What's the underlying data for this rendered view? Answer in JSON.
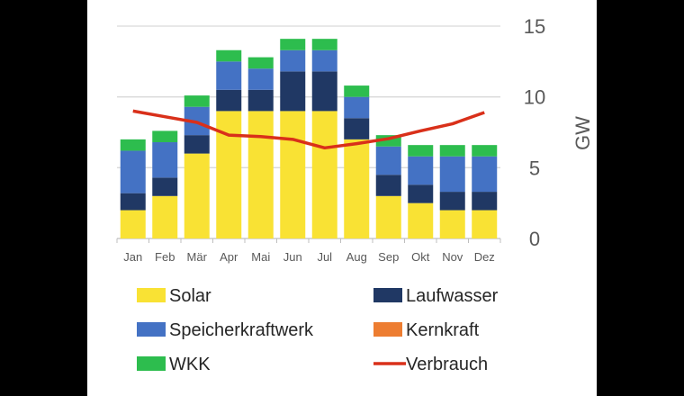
{
  "chart_data": {
    "type": "bar",
    "stacked": true,
    "categories": [
      "Jan",
      "Feb",
      "Mär",
      "Apr",
      "Mai",
      "Jun",
      "Jul",
      "Aug",
      "Sep",
      "Okt",
      "Nov",
      "Dez"
    ],
    "series": [
      {
        "name": "Solar",
        "color": "#F9E234",
        "values": [
          2,
          3,
          6,
          9,
          9,
          9,
          9,
          7,
          3,
          2.5,
          2,
          2
        ]
      },
      {
        "name": "Laufwasser",
        "color": "#203864",
        "values": [
          1.2,
          1.3,
          1.3,
          1.5,
          1.5,
          2.8,
          2.8,
          1.5,
          1.5,
          1.3,
          1.3,
          1.3
        ]
      },
      {
        "name": "Speicherkraftwerk",
        "color": "#4472C4",
        "values": [
          3,
          2.5,
          2,
          2,
          1.5,
          1.5,
          1.5,
          1.5,
          2,
          2,
          2.5,
          2.5
        ]
      },
      {
        "name": "Kernkraft",
        "color": "#ED7D31",
        "values": [
          0,
          0,
          0,
          0,
          0,
          0,
          0,
          0,
          0,
          0,
          0,
          0
        ]
      },
      {
        "name": "WKK",
        "color": "#2DBD4E",
        "values": [
          0.8,
          0.8,
          0.8,
          0.8,
          0.8,
          0.8,
          0.8,
          0.8,
          0.8,
          0.8,
          0.8,
          0.8
        ]
      }
    ],
    "line_series": {
      "name": "Verbrauch",
      "color": "#D9301A",
      "values": [
        9,
        8.6,
        8.2,
        7.3,
        7.2,
        7,
        6.4,
        6.7,
        7.05,
        7.6,
        8.1,
        8.9
      ]
    },
    "ylabel": "GW",
    "ylim": [
      0,
      15
    ],
    "yticks": [
      "0",
      "5",
      "10",
      "15"
    ],
    "y_axis_side": "right",
    "grid": true,
    "legend_placement": "bottom",
    "legend_order": [
      "Solar",
      "Laufwasser",
      "Speicherkraftwerk",
      "Kernkraft",
      "WKK",
      "Verbrauch"
    ]
  }
}
